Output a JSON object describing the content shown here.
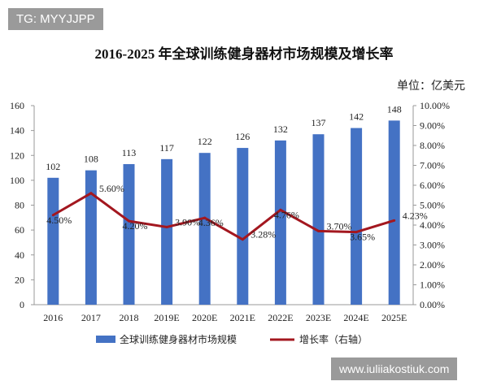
{
  "watermark_top": "TG: MYYJJPP",
  "watermark_bottom": "www.iuliiakostiuk.com",
  "chart_data": {
    "type": "bar+line",
    "title": "2016-2025 年全球训练健身器材市场规模及增长率",
    "unit_label": "单位：亿美元",
    "categories": [
      "2016",
      "2017",
      "2018",
      "2019E",
      "2020E",
      "2021E",
      "2022E",
      "2023E",
      "2024E",
      "2025E"
    ],
    "series": [
      {
        "name": "全球训练健身器材市场规模",
        "type": "bar",
        "axis": "left",
        "color": "#4472C4",
        "values": [
          102,
          108,
          113,
          117,
          122,
          126,
          132,
          137,
          142,
          148
        ]
      },
      {
        "name": "增长率（右轴）",
        "type": "line",
        "axis": "right",
        "color": "#A3171F",
        "values": [
          4.5,
          5.6,
          4.2,
          3.9,
          4.36,
          3.28,
          4.76,
          3.7,
          3.65,
          4.23
        ],
        "labels": [
          "4.50%",
          "5.60%",
          "4.20%",
          "3.90%",
          "4.36%",
          "3.28%",
          "4.76%",
          "3.70%",
          "3.65%",
          "4.23%"
        ]
      }
    ],
    "left_axis": {
      "ylim": [
        0,
        160
      ],
      "ticks": [
        "0",
        "20",
        "40",
        "60",
        "80",
        "100",
        "120",
        "140",
        "160"
      ]
    },
    "right_axis": {
      "ylim": [
        0,
        10
      ],
      "ticks": [
        "0.00%",
        "1.00%",
        "2.00%",
        "3.00%",
        "4.00%",
        "5.00%",
        "6.00%",
        "7.00%",
        "8.00%",
        "9.00%",
        "10.00%"
      ]
    },
    "legend_position": "bottom",
    "grid": false
  }
}
